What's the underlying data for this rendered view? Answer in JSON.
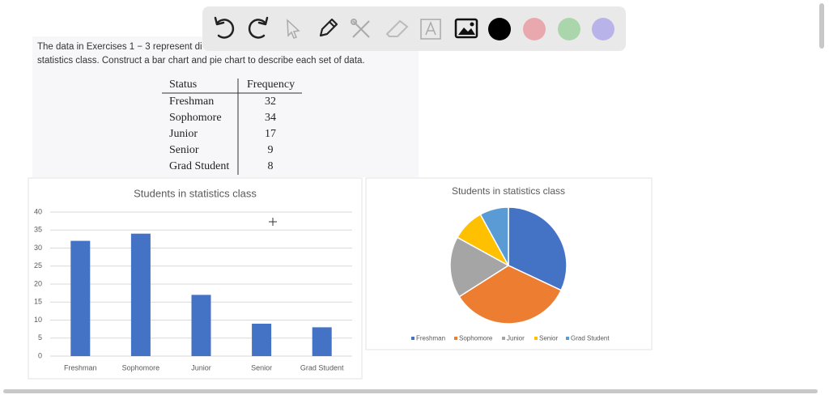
{
  "problem": {
    "line1": "The data in Exercises 1 − 3 represent di",
    "line2": "statistics class. Construct a bar chart and pie chart to describe each set of data."
  },
  "table": {
    "header": [
      "Status",
      "Frequency"
    ],
    "rows": [
      [
        "Freshman",
        32
      ],
      [
        "Sophomore",
        34
      ],
      [
        "Junior",
        17
      ],
      [
        "Senior",
        9
      ],
      [
        "Grad Student",
        8
      ]
    ]
  },
  "chart_data": [
    {
      "type": "bar",
      "title": "Students in statistics class",
      "categories": [
        "Freshman",
        "Sophomore",
        "Junior",
        "Senior",
        "Grad Student"
      ],
      "values": [
        32,
        34,
        17,
        9,
        8
      ],
      "color": "#4472c4",
      "ylim": [
        0,
        40
      ],
      "yticks": [
        0,
        5,
        10,
        15,
        20,
        25,
        30,
        35,
        40
      ],
      "grid": true
    },
    {
      "type": "pie",
      "title": "Students in statistics class",
      "categories": [
        "Freshman",
        "Sophomore",
        "Junior",
        "Senior",
        "Grad Student"
      ],
      "values": [
        32,
        34,
        17,
        9,
        8
      ],
      "colors": [
        "#4472c4",
        "#ed7d31",
        "#a5a5a5",
        "#ffc000",
        "#5b9bd5"
      ],
      "legend": "bottom"
    }
  ]
}
